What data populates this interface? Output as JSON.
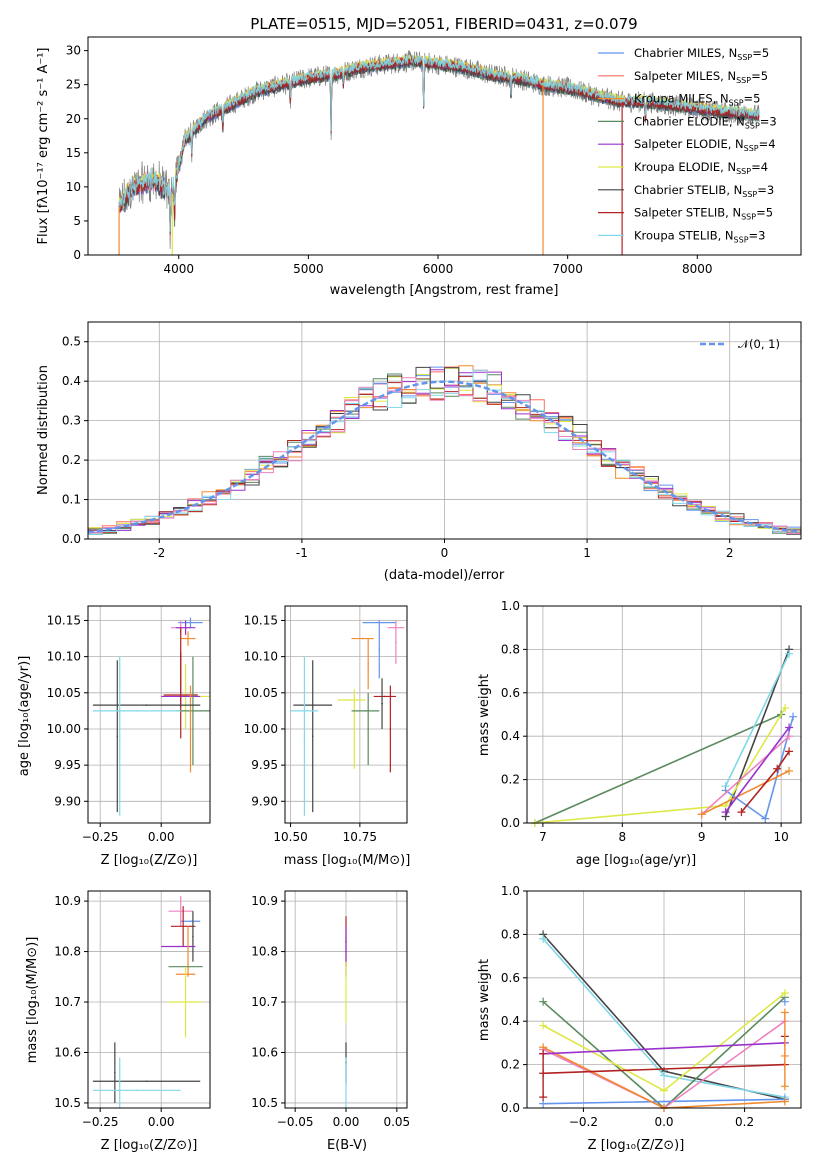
{
  "chart_data": [
    {
      "id": "spectrum",
      "type": "line",
      "title": "PLATE=0515, MJD=52051, FIBERID=0431, z=0.079",
      "xlabel": "wavelength [Angstrom, rest frame]",
      "ylabel": "Flux [fλ10⁻¹⁷ erg cm⁻² s⁻¹ A⁻¹]",
      "xlim": [
        3300,
        8800
      ],
      "ylim": [
        0,
        32
      ],
      "xticks": [
        4000,
        5000,
        6000,
        7000,
        8000
      ],
      "yticks": [
        0,
        5,
        10,
        15,
        20,
        25,
        30
      ],
      "legend_position": "upper-right",
      "grid": false,
      "x_range_data": [
        3540,
        8480
      ],
      "envelope": {
        "x": [
          3540,
          3650,
          3800,
          3950,
          4050,
          4200,
          4400,
          4600,
          4800,
          5000,
          5200,
          5400,
          5600,
          5800,
          6000,
          6200,
          6400,
          6600,
          6800,
          7000,
          7200,
          7400,
          7600,
          7800,
          8000,
          8200,
          8480
        ],
        "y": [
          7,
          10,
          11,
          9,
          17,
          20,
          22,
          24,
          25,
          26,
          26.5,
          27.5,
          28,
          28.5,
          28,
          27.5,
          26.5,
          26,
          25,
          24.5,
          23.5,
          22.5,
          22.5,
          22,
          21.5,
          21,
          20.5
        ]
      },
      "series": [
        {
          "name": "Chabrier MILES, N_SSP=5",
          "color": "#6495ed"
        },
        {
          "name": "Salpeter MILES, N_SSP=5",
          "color": "#ff6f61"
        },
        {
          "name": "Kroupa MILES, N_SSP=5",
          "color": "#f28a2e"
        },
        {
          "name": "Chabrier ELODIE, N_SSP=3",
          "color": "#5a8a5e"
        },
        {
          "name": "Salpeter ELODIE, N_SSP=4",
          "color": "#9a32cd"
        },
        {
          "name": "Kroupa ELODIE, N_SSP=4",
          "color": "#dde844"
        },
        {
          "name": "Chabrier STELIB, N_SSP=3",
          "color": "#444444"
        },
        {
          "name": "Salpeter STELIB, N_SSP=5",
          "color": "#b22222"
        },
        {
          "name": "Kroupa STELIB, N_SSP=3",
          "color": "#80d8e8"
        }
      ],
      "data_color": "#808080"
    },
    {
      "id": "residuals",
      "type": "histogram",
      "xlabel": "(data-model)/error",
      "ylabel": "Normed distribution",
      "xlim": [
        -2.5,
        2.5
      ],
      "ylim": [
        0,
        0.55
      ],
      "xticks": [
        -2,
        -1,
        0,
        1,
        2
      ],
      "yticks": [
        0.0,
        0.1,
        0.2,
        0.3,
        0.4,
        0.5
      ],
      "grid": true,
      "legend": "𝒩(0, 1)",
      "legend_position": "upper-right",
      "bin_width": 0.1,
      "series_colors": [
        "#6495ed",
        "#ff6f61",
        "#f28a2e",
        "#5a8a5e",
        "#9a32cd",
        "#dde844",
        "#444444",
        "#b22222",
        "#80d8e8",
        "#ee82c0"
      ]
    },
    {
      "id": "age_vs_Z",
      "type": "errorbar",
      "xlabel": "Z [log₁₀(Z/Z⊙)]",
      "ylabel": "age  [log₁₀(age/yr)]",
      "xlim": [
        -0.3,
        0.2
      ],
      "ylim": [
        9.87,
        10.17
      ],
      "xticks": [
        -0.25,
        0.0
      ],
      "xticklabels": [
        "−0.25",
        "0.00"
      ],
      "yticks": [
        9.9,
        9.95,
        10.0,
        10.05,
        10.1,
        10.15
      ],
      "yticklabels": [
        "9.90",
        "9.95",
        "10.00",
        "10.05",
        "10.10",
        "10.15"
      ],
      "grid": true,
      "points": [
        {
          "x": 0.12,
          "xerr": 0.05,
          "y": 10.147,
          "yerr": 0.007,
          "color": "#6495ed"
        },
        {
          "x": 0.08,
          "xerr": 0.04,
          "y": 10.14,
          "yerr": 0.01,
          "color": "#ee82c0"
        },
        {
          "x": 0.1,
          "xerr": 0.04,
          "y": 10.14,
          "yerr": 0.01,
          "color": "#9a32cd"
        },
        {
          "x": 0.11,
          "xerr": 0.03,
          "y": 10.125,
          "yerr": 0.01,
          "color": "#f28a2e"
        },
        {
          "x": 0.08,
          "xerr": 0.0,
          "y": 10.1,
          "yerr": 0.04,
          "color": "#b22222"
        },
        {
          "x": 0.1,
          "xerr": 0.1,
          "y": 10.045,
          "yerr": 0.045,
          "color": "#dde844"
        },
        {
          "x": 0.08,
          "xerr": 0.08,
          "y": 10.045,
          "yerr": 0.015,
          "color": "#9a32cd"
        },
        {
          "x": 0.08,
          "xerr": 0.07,
          "y": 10.047,
          "yerr": 0.06,
          "color": "#b22222"
        },
        {
          "x": 0.13,
          "xerr": 0.07,
          "y": 10.025,
          "yerr": 0.075,
          "color": "#5a8a5e"
        },
        {
          "x": 0.12,
          "xerr": 0.0,
          "y": 10.0,
          "yerr": 0.06,
          "color": "#f28a2e"
        },
        {
          "x": -0.06,
          "xerr": 0.22,
          "y": 10.033,
          "yerr": 0.0,
          "color": "#444444"
        },
        {
          "x": -0.18,
          "xerr": 0.0,
          "y": 9.99,
          "yerr": 0.105,
          "color": "#444444"
        },
        {
          "x": -0.1,
          "xerr": 0.18,
          "y": 10.025,
          "yerr": 0.0,
          "color": "#80d8e8"
        },
        {
          "x": -0.17,
          "xerr": 0.0,
          "y": 9.99,
          "yerr": 0.11,
          "color": "#80d8e8"
        }
      ]
    },
    {
      "id": "age_vs_mass",
      "type": "errorbar",
      "xlabel": "mass [log₁₀(M/M⊙)]",
      "ylabel": "",
      "xlim": [
        10.48,
        10.92
      ],
      "ylim": [
        9.87,
        10.17
      ],
      "xticks": [
        10.5,
        10.75
      ],
      "xticklabels": [
        "10.50",
        "10.75"
      ],
      "yticks": [
        9.9,
        9.95,
        10.0,
        10.05,
        10.1,
        10.15
      ],
      "yticklabels": [
        "9.90",
        "9.95",
        "10.00",
        "10.05",
        "10.10",
        "10.15"
      ],
      "grid": true,
      "points": [
        {
          "x": 10.82,
          "xerr": 0.06,
          "y": 10.147,
          "yerr": 0.0,
          "color": "#6495ed"
        },
        {
          "x": 10.82,
          "xerr": 0.0,
          "y": 10.11,
          "yerr": 0.04,
          "color": "#6495ed"
        },
        {
          "x": 10.88,
          "xerr": 0.03,
          "y": 10.14,
          "yerr": 0.0,
          "color": "#ee82c0"
        },
        {
          "x": 10.88,
          "xerr": 0.0,
          "y": 10.12,
          "yerr": 0.03,
          "color": "#ee82c0"
        },
        {
          "x": 10.76,
          "xerr": 0.04,
          "y": 10.125,
          "yerr": 0.0,
          "color": "#f28a2e"
        },
        {
          "x": 10.78,
          "xerr": 0.0,
          "y": 10.09,
          "yerr": 0.035,
          "color": "#f28a2e"
        },
        {
          "x": 10.84,
          "xerr": 0.04,
          "y": 10.045,
          "yerr": 0.0,
          "color": "#b22222"
        },
        {
          "x": 10.86,
          "xerr": 0.0,
          "y": 10.0,
          "yerr": 0.06,
          "color": "#b22222"
        },
        {
          "x": 10.83,
          "xerr": 0.0,
          "y": 10.035,
          "yerr": 0.035,
          "color": "#444444"
        },
        {
          "x": 10.72,
          "xerr": 0.05,
          "y": 10.04,
          "yerr": 0.0,
          "color": "#dde844"
        },
        {
          "x": 10.73,
          "xerr": 0.0,
          "y": 10.0,
          "yerr": 0.055,
          "color": "#dde844"
        },
        {
          "x": 10.77,
          "xerr": 0.05,
          "y": 10.025,
          "yerr": 0.0,
          "color": "#5a8a5e"
        },
        {
          "x": 10.78,
          "xerr": 0.0,
          "y": 10.0,
          "yerr": 0.05,
          "color": "#5a8a5e"
        },
        {
          "x": 10.58,
          "xerr": 0.07,
          "y": 10.033,
          "yerr": 0.0,
          "color": "#444444"
        },
        {
          "x": 10.58,
          "xerr": 0.0,
          "y": 9.99,
          "yerr": 0.105,
          "color": "#444444"
        },
        {
          "x": 10.55,
          "xerr": 0.05,
          "y": 10.025,
          "yerr": 0.0,
          "color": "#80d8e8"
        },
        {
          "x": 10.55,
          "xerr": 0.0,
          "y": 9.99,
          "yerr": 0.11,
          "color": "#80d8e8"
        }
      ]
    },
    {
      "id": "mw_vs_age",
      "type": "line",
      "xlabel": "age  [log₁₀(age/yr)]",
      "ylabel": "mass weight",
      "xlim": [
        6.8,
        10.25
      ],
      "ylim": [
        0,
        1.0
      ],
      "xticks": [
        7,
        8,
        9,
        10
      ],
      "yticks": [
        0.0,
        0.2,
        0.4,
        0.6,
        0.8,
        1.0
      ],
      "grid": true,
      "series": [
        {
          "color": "#5a8a5e",
          "x": [
            6.9,
            10.0
          ],
          "y": [
            0.0,
            0.5
          ]
        },
        {
          "color": "#444444",
          "x": [
            9.3,
            10.1
          ],
          "y": [
            0.03,
            0.8
          ]
        },
        {
          "color": "#80d8e8",
          "x": [
            9.3,
            10.1
          ],
          "y": [
            0.17,
            0.78
          ]
        },
        {
          "color": "#dde844",
          "x": [
            6.9,
            9.3,
            10.05
          ],
          "y": [
            0.0,
            0.08,
            0.53
          ]
        },
        {
          "color": "#6495ed",
          "x": [
            9.3,
            9.8,
            10.15
          ],
          "y": [
            0.15,
            0.02,
            0.49
          ]
        },
        {
          "color": "#ee82c0",
          "x": [
            9.0,
            10.1
          ],
          "y": [
            0.04,
            0.4
          ]
        },
        {
          "color": "#f28a2e",
          "x": [
            9.0,
            10.1
          ],
          "y": [
            0.04,
            0.24
          ]
        },
        {
          "color": "#b22222",
          "x": [
            9.5,
            9.95,
            10.1
          ],
          "y": [
            0.05,
            0.25,
            0.33
          ]
        },
        {
          "color": "#9a32cd",
          "x": [
            9.3,
            10.1
          ],
          "y": [
            0.05,
            0.44
          ]
        }
      ]
    },
    {
      "id": "mass_vs_Z",
      "type": "errorbar",
      "xlabel": "Z [log₁₀(Z/Z⊙)]",
      "ylabel": "mass [log₁₀(M/M⊙)]",
      "xlim": [
        -0.3,
        0.2
      ],
      "ylim": [
        10.49,
        10.92
      ],
      "xticks": [
        -0.25,
        0.0
      ],
      "xticklabels": [
        "−0.25",
        "0.00"
      ],
      "yticks": [
        10.5,
        10.6,
        10.7,
        10.8,
        10.9
      ],
      "yticklabels": [
        "10.5",
        "10.6",
        "10.7",
        "10.8",
        "10.9"
      ],
      "grid": true,
      "points": [
        {
          "x": 0.08,
          "xerr": 0.05,
          "y": 10.88,
          "yerr": 0.03,
          "color": "#ee82c0"
        },
        {
          "x": 0.12,
          "xerr": 0.04,
          "y": 10.86,
          "yerr": 0.0,
          "color": "#6495ed"
        },
        {
          "x": 0.09,
          "xerr": 0.05,
          "y": 10.85,
          "yerr": 0.04,
          "color": "#b22222"
        },
        {
          "x": 0.13,
          "xerr": 0.0,
          "y": 10.83,
          "yerr": 0.05,
          "color": "#444444"
        },
        {
          "x": 0.07,
          "xerr": 0.07,
          "y": 10.81,
          "yerr": 0.0,
          "color": "#9a32cd"
        },
        {
          "x": 0.11,
          "xerr": 0.0,
          "y": 10.8,
          "yerr": 0.05,
          "color": "#f28a2e"
        },
        {
          "x": 0.1,
          "xerr": 0.07,
          "y": 10.77,
          "yerr": 0.0,
          "color": "#5a8a5e"
        },
        {
          "x": 0.1,
          "xerr": 0.04,
          "y": 10.755,
          "yerr": 0.0,
          "color": "#f28a2e"
        },
        {
          "x": 0.1,
          "xerr": 0.07,
          "y": 10.7,
          "yerr": 0.07,
          "color": "#dde844"
        },
        {
          "x": -0.06,
          "xerr": 0.22,
          "y": 10.543,
          "yerr": 0.0,
          "color": "#444444"
        },
        {
          "x": -0.19,
          "xerr": 0.0,
          "y": 10.56,
          "yerr": 0.06,
          "color": "#444444"
        },
        {
          "x": -0.1,
          "xerr": 0.18,
          "y": 10.525,
          "yerr": 0.0,
          "color": "#80d8e8"
        },
        {
          "x": -0.17,
          "xerr": 0.0,
          "y": 10.54,
          "yerr": 0.05,
          "color": "#80d8e8"
        }
      ]
    },
    {
      "id": "mass_vs_ebv",
      "type": "errorbar",
      "xlabel": "E(B-V)",
      "ylabel": "",
      "xlim": [
        -0.06,
        0.06
      ],
      "ylim": [
        10.49,
        10.92
      ],
      "xticks": [
        -0.05,
        0.0,
        0.05
      ],
      "xticklabels": [
        "−0.05",
        "0.00",
        "0.05"
      ],
      "yticks": [
        10.5,
        10.6,
        10.7,
        10.8,
        10.9
      ],
      "yticklabels": [
        "10.5",
        "10.6",
        "10.7",
        "10.8",
        "10.9"
      ],
      "grid": true,
      "points": [
        {
          "x": 0.0,
          "xerr": 0.0,
          "y": 10.82,
          "yerr": 0.05,
          "color": "#b22222"
        },
        {
          "x": 0.0,
          "xerr": 0.0,
          "y": 10.8,
          "yerr": 0.05,
          "color": "#9a32cd"
        },
        {
          "x": 0.0,
          "xerr": 0.0,
          "y": 10.72,
          "yerr": 0.06,
          "color": "#dde844"
        },
        {
          "x": 0.0,
          "xerr": 0.0,
          "y": 10.58,
          "yerr": 0.04,
          "color": "#444444"
        },
        {
          "x": 0.0,
          "xerr": 0.0,
          "y": 10.54,
          "yerr": 0.05,
          "color": "#80d8e8"
        }
      ]
    },
    {
      "id": "mw_vs_Z",
      "type": "line",
      "xlabel": "Z [log₁₀(Z/Z⊙)]",
      "ylabel": "mass weight",
      "xlim": [
        -0.34,
        0.34
      ],
      "ylim": [
        0,
        1.0
      ],
      "xticks": [
        -0.2,
        0.0,
        0.2
      ],
      "xticklabels": [
        "−0.2",
        "0.0",
        "0.2"
      ],
      "yticks": [
        0.0,
        0.2,
        0.4,
        0.6,
        0.8,
        1.0
      ],
      "grid": true,
      "series": [
        {
          "color": "#444444",
          "x": [
            -0.3,
            0.0,
            0.3
          ],
          "y": [
            0.8,
            0.17,
            0.04
          ]
        },
        {
          "color": "#80d8e8",
          "x": [
            -0.3,
            0.0,
            0.3
          ],
          "y": [
            0.78,
            0.15,
            0.05
          ]
        },
        {
          "color": "#5a8a5e",
          "x": [
            -0.3,
            0.0,
            0.3
          ],
          "y": [
            0.49,
            0.0,
            0.51
          ]
        },
        {
          "color": "#dde844",
          "x": [
            -0.3,
            0.0,
            0.3
          ],
          "y": [
            0.38,
            0.08,
            0.53
          ]
        },
        {
          "color": "#6495ed",
          "x": [
            -0.3,
            0.3
          ],
          "y": [
            0.02,
            0.04
          ]
        },
        {
          "color": "#ee82c0",
          "x": [
            -0.3,
            0.0,
            0.3
          ],
          "y": [
            0.27,
            0.0,
            0.4
          ]
        },
        {
          "color": "#f28a2e",
          "x": [
            -0.3,
            0.0,
            0.3
          ],
          "y": [
            0.28,
            0.0,
            0.03
          ]
        },
        {
          "color": "#b22222",
          "x": [
            -0.3,
            0.3
          ],
          "y": [
            0.16,
            0.2
          ]
        },
        {
          "color": "#9a32cd",
          "x": [
            -0.3,
            0.3
          ],
          "y": [
            0.25,
            0.3
          ]
        }
      ],
      "markers_only": [
        {
          "color": "#b22222",
          "x": -0.3,
          "y": [
            0.05,
            0.25
          ]
        },
        {
          "color": "#b22222",
          "x": 0.3,
          "y": [
            0.33
          ]
        },
        {
          "color": "#f28a2e",
          "x": 0.3,
          "y": [
            0.1,
            0.24,
            0.44
          ]
        },
        {
          "color": "#6495ed",
          "x": 0.3,
          "y": [
            0.49
          ]
        }
      ]
    }
  ]
}
